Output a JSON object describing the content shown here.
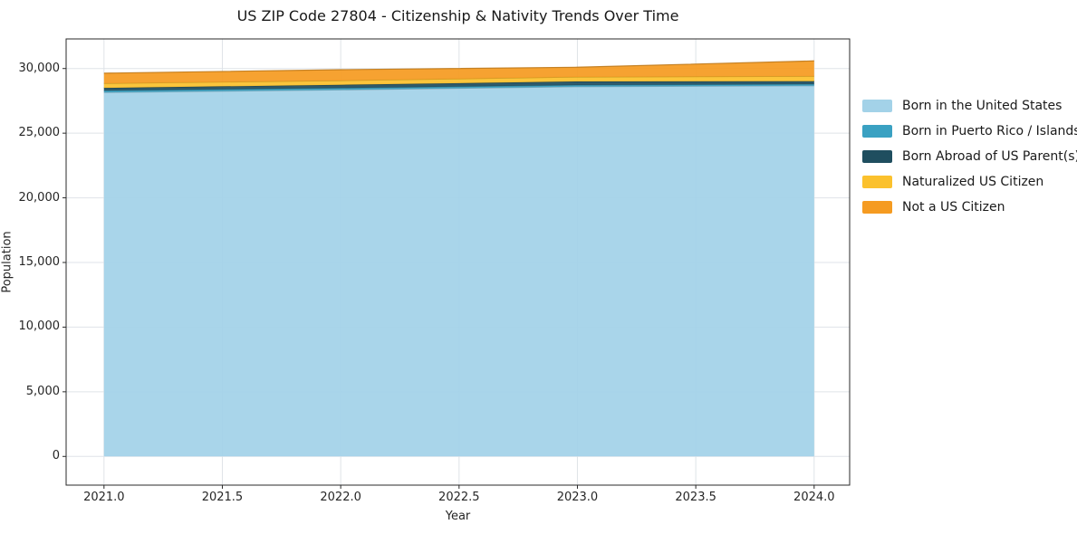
{
  "chart_data": {
    "type": "area",
    "stacked": true,
    "title": "US ZIP Code 27804 - Citizenship & Nativity Trends Over Time",
    "xlabel": "Year",
    "ylabel": "Population",
    "x": [
      2021,
      2022,
      2023,
      2024
    ],
    "series": [
      {
        "name": "Born in the United States",
        "color": "#A3D2E8",
        "values": [
          28150,
          28350,
          28600,
          28670
        ]
      },
      {
        "name": "Born in Puerto Rico / Islands",
        "color": "#3AA1C2",
        "values": [
          140,
          140,
          120,
          120
        ]
      },
      {
        "name": "Born Abroad of US Parent(s)",
        "color": "#1F4E5F",
        "values": [
          210,
          250,
          280,
          230
        ]
      },
      {
        "name": "Naturalized US Citizen",
        "color": "#FBC12D",
        "values": [
          350,
          330,
          350,
          380
        ]
      },
      {
        "name": "Not a US Citizen",
        "color": "#F59B21",
        "values": [
          790,
          840,
          750,
          1190
        ]
      }
    ],
    "totals": [
      29650,
      29910,
      30100,
      30590
    ],
    "xlim": [
      2020.84,
      2024.15
    ],
    "ylim": [
      -2220,
      32290
    ],
    "x_ticks": {
      "values": [
        2021.0,
        2021.5,
        2022.0,
        2022.5,
        2023.0,
        2023.5,
        2024.0
      ],
      "labels": [
        "2021.0",
        "2021.5",
        "2022.0",
        "2022.5",
        "2023.0",
        "2023.5",
        "2024.0"
      ]
    },
    "y_ticks": {
      "values": [
        0,
        5000,
        10000,
        15000,
        20000,
        25000,
        30000
      ],
      "labels": [
        "0",
        "5,000",
        "10,000",
        "15,000",
        "20,000",
        "25,000",
        "30,000"
      ]
    },
    "grid": true,
    "grid_color": "#dfe3e8",
    "spine_color": "#2a2a2a",
    "legend_position": "right"
  }
}
